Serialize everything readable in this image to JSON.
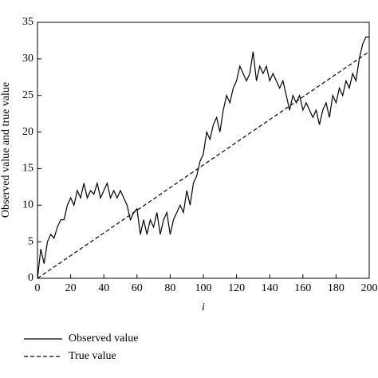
{
  "chart_data": {
    "type": "line",
    "x_label": "i",
    "y_label": "Observed value and true value",
    "xlim": [
      0,
      200
    ],
    "ylim": [
      0,
      35
    ],
    "xticks": [
      0,
      20,
      40,
      60,
      80,
      100,
      120,
      140,
      160,
      180,
      200
    ],
    "yticks": [
      0,
      5,
      10,
      15,
      20,
      25,
      30,
      35
    ],
    "series": [
      {
        "name": "Observed value",
        "color": "#000000",
        "dash": "solid",
        "x": [
          0,
          2,
          4,
          6,
          8,
          10,
          12,
          14,
          16,
          18,
          20,
          22,
          24,
          26,
          28,
          30,
          32,
          34,
          36,
          38,
          40,
          42,
          44,
          46,
          48,
          50,
          52,
          54,
          56,
          58,
          60,
          62,
          64,
          66,
          68,
          70,
          72,
          74,
          76,
          78,
          80,
          82,
          84,
          86,
          88,
          90,
          92,
          94,
          96,
          98,
          100,
          102,
          104,
          106,
          108,
          110,
          112,
          114,
          116,
          118,
          120,
          122,
          124,
          126,
          128,
          130,
          132,
          134,
          136,
          138,
          140,
          142,
          144,
          146,
          148,
          150,
          152,
          154,
          156,
          158,
          160,
          162,
          164,
          166,
          168,
          170,
          172,
          174,
          176,
          178,
          180,
          182,
          184,
          186,
          188,
          190,
          192,
          194,
          196,
          198,
          200
        ],
        "values": [
          0,
          4,
          2,
          5,
          6,
          5.5,
          7,
          8,
          8,
          10,
          11,
          10,
          12,
          11,
          13,
          11,
          12,
          11.5,
          13,
          11,
          12,
          13,
          11,
          12,
          11,
          12,
          11,
          10,
          8,
          9,
          9.5,
          6,
          8,
          6,
          8,
          7,
          9,
          6,
          8,
          9,
          6,
          8,
          9,
          10,
          9,
          12,
          10,
          13,
          14,
          16,
          17,
          20,
          19,
          21,
          22,
          20,
          23,
          25,
          24,
          26,
          27,
          29,
          28,
          27,
          28,
          31,
          27,
          29,
          28,
          29,
          27,
          28,
          27,
          26,
          27,
          25,
          23,
          25,
          24,
          25,
          23,
          24,
          23,
          22,
          23,
          21,
          23,
          24,
          22,
          25,
          24,
          26,
          25,
          27,
          26,
          28,
          27,
          30,
          32,
          33,
          33
        ]
      },
      {
        "name": "True value",
        "color": "#000000",
        "dash": "dashed",
        "x": [
          0,
          200
        ],
        "values": [
          0,
          31
        ]
      }
    ]
  }
}
